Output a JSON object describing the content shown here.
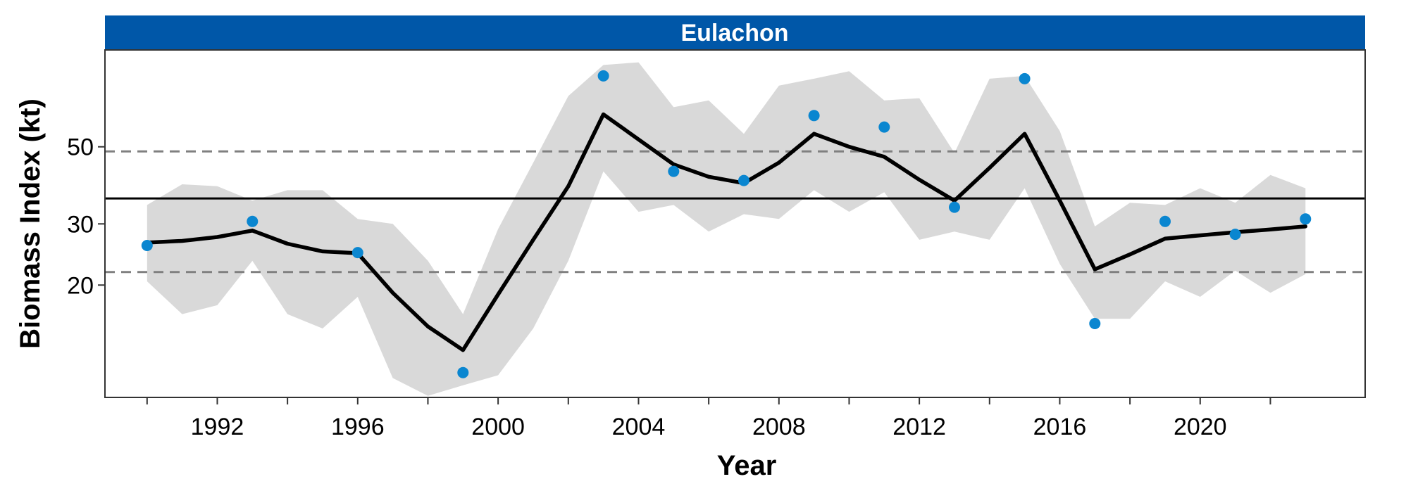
{
  "chart_data": {
    "type": "line",
    "panel_title": "Eulachon",
    "xlabel": "Year",
    "ylabel": "Biomass Index (kt)",
    "y_scale": "log",
    "xlim": [
      1988.8,
      2024.7
    ],
    "ylim": [
      9.5,
      95
    ],
    "x_ticks": [
      1992,
      1996,
      2000,
      2004,
      2008,
      2012,
      2016,
      2020
    ],
    "x_minor_ticks": [
      1990,
      1994,
      1998,
      2002,
      2006,
      2010,
      2014,
      2018,
      2022
    ],
    "y_ticks": [
      20,
      30,
      50
    ],
    "reference_lines": {
      "mean": 35.5,
      "upper_sd": 48.5,
      "lower_sd": 21.8
    },
    "colors": {
      "strip": "#0057A8",
      "points": "#0A86D0",
      "ribbon": "#D9D9D9",
      "trend": "#000000",
      "dashed": "#808080"
    },
    "series": [
      {
        "kind": "observed_points",
        "x": [
          1990,
          1993,
          1996,
          1999,
          2003,
          2005,
          2007,
          2009,
          2011,
          2013,
          2015,
          2017,
          2019,
          2021,
          2023
        ],
        "y": [
          26.0,
          30.5,
          24.8,
          11.2,
          80.0,
          42.5,
          40.0,
          61.5,
          57.0,
          33.5,
          78.5,
          15.5,
          30.5,
          28.0,
          31.0
        ]
      },
      {
        "kind": "trend",
        "x": [
          1990,
          1991,
          1992,
          1993,
          1994,
          1995,
          1996,
          1997,
          1998,
          1999,
          2000,
          2001,
          2002,
          2003,
          2004,
          2005,
          2006,
          2007,
          2008,
          2009,
          2010,
          2011,
          2012,
          2013,
          2014,
          2015,
          2016,
          2017,
          2018,
          2019,
          2020,
          2021,
          2022,
          2023
        ],
        "y": [
          26.5,
          26.8,
          27.5,
          28.7,
          26.3,
          25.0,
          24.7,
          19.0,
          15.2,
          13.0,
          18.8,
          27.0,
          38.5,
          62.0,
          52.5,
          44.5,
          41.0,
          39.3,
          45.0,
          54.5,
          50.0,
          46.8,
          40.2,
          35.0,
          43.5,
          54.5,
          35.0,
          22.2,
          24.5,
          27.2,
          27.8,
          28.4,
          28.9,
          29.5
        ]
      },
      {
        "kind": "uncertainty_band",
        "x": [
          1990,
          1991,
          1992,
          1993,
          1994,
          1995,
          1996,
          1997,
          1998,
          1999,
          2000,
          2001,
          2002,
          2003,
          2004,
          2005,
          2006,
          2007,
          2008,
          2009,
          2010,
          2011,
          2012,
          2013,
          2014,
          2015,
          2016,
          2017,
          2018,
          2019,
          2020,
          2021,
          2022,
          2023
        ],
        "lower": [
          20.5,
          16.5,
          17.5,
          23.5,
          16.5,
          15.0,
          18.5,
          10.8,
          9.6,
          10.3,
          11.0,
          15.0,
          23.5,
          42.5,
          32.5,
          34.0,
          28.5,
          32.0,
          31.0,
          37.5,
          32.5,
          37.0,
          27.0,
          28.5,
          27.0,
          38.0,
          23.0,
          16.0,
          16.0,
          20.5,
          18.5,
          22.0,
          19.0,
          21.5
        ],
        "upper": [
          34.0,
          39.0,
          38.5,
          35.0,
          37.5,
          37.5,
          31.0,
          30.0,
          23.5,
          16.5,
          29.0,
          45.0,
          70.0,
          86.0,
          87.5,
          65.0,
          68.0,
          54.5,
          75.0,
          78.5,
          82.5,
          68.0,
          69.0,
          48.0,
          78.5,
          80.0,
          55.5,
          29.5,
          34.5,
          34.0,
          38.0,
          34.5,
          41.5,
          38.0
        ]
      }
    ]
  }
}
